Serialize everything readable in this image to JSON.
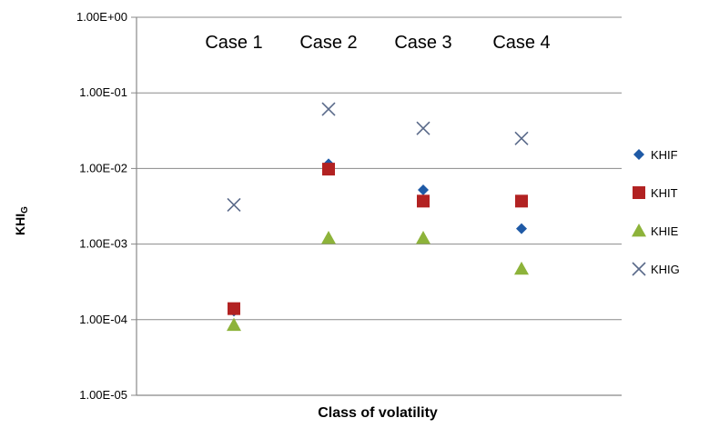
{
  "chart_data": {
    "type": "scatter",
    "title": "",
    "xlabel": "Class of volatility",
    "ylabel": "KHI",
    "ylabel_subscript": "G",
    "yscale": "log",
    "ylim": [
      1e-05,
      1
    ],
    "y_ticks": [
      {
        "value": 1,
        "label": "1.00E+00"
      },
      {
        "value": 0.1,
        "label": "1.00E-01"
      },
      {
        "value": 0.01,
        "label": "1.00E-02"
      },
      {
        "value": 0.001,
        "label": "1.00E-03"
      },
      {
        "value": 0.0001,
        "label": "1.00E-04"
      },
      {
        "value": 1e-05,
        "label": "1.00E-05"
      }
    ],
    "grid": true,
    "legend_position": "right",
    "categories": [
      "Case 1",
      "Case 2",
      "Case 3",
      "Case 4"
    ],
    "series": [
      {
        "name": "KHIF",
        "marker": "diamond",
        "color": "#1f5aa6",
        "values": [
          0.00013,
          0.0115,
          0.0052,
          0.0016
        ]
      },
      {
        "name": "KHIT",
        "marker": "square",
        "color": "#b22222",
        "values": [
          0.00014,
          0.0098,
          0.0037,
          0.0037
        ]
      },
      {
        "name": "KHIE",
        "marker": "triangle",
        "color": "#8db33a",
        "values": [
          8.5e-05,
          0.0012,
          0.0012,
          0.00047
        ]
      },
      {
        "name": "KHIG",
        "marker": "x",
        "color": "#5a6a8a",
        "values": [
          0.0033,
          0.061,
          0.034,
          0.025
        ]
      }
    ]
  }
}
